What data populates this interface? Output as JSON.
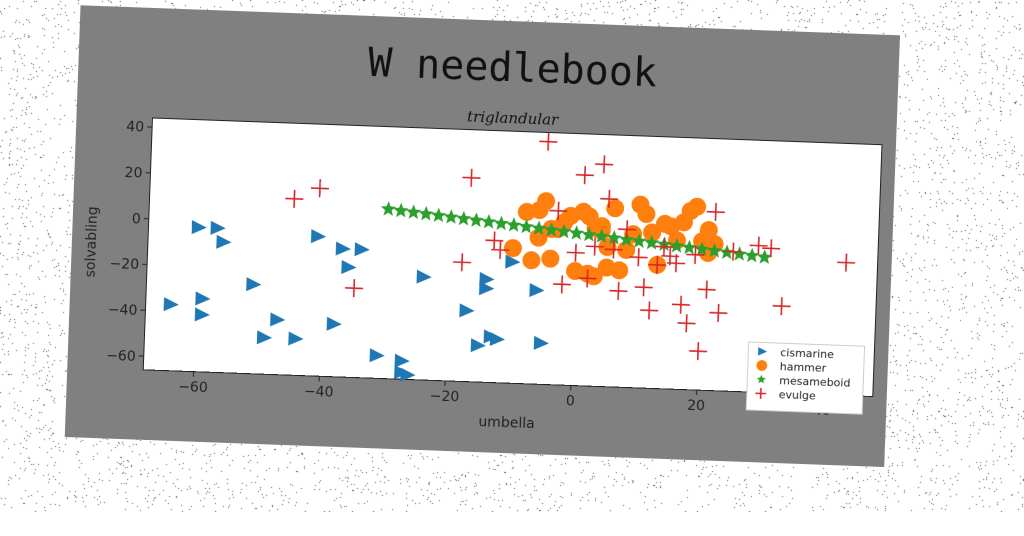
{
  "chart_data": {
    "type": "scatter",
    "title": "W needlebook",
    "subtitle": "triglandular",
    "xlabel": "umbella",
    "ylabel": "solvabling",
    "xlim": [
      -68,
      48
    ],
    "ylim": [
      -66,
      44
    ],
    "xticks": [
      -60,
      -40,
      -20,
      0,
      20,
      40
    ],
    "yticks": [
      -60,
      -40,
      -20,
      0,
      20,
      40
    ],
    "grid": false,
    "legend_position": "lower-right",
    "series": [
      {
        "name": "cismarine",
        "marker": "triangle-right",
        "color": "#1f77b4",
        "x": [
          -60,
          -57,
          -56,
          -64,
          -59,
          -59,
          -51,
          -47,
          -49,
          -44,
          -41,
          -38,
          -37,
          -36,
          -34,
          -31,
          -27,
          -27,
          -26,
          -24,
          -17,
          -15,
          -14,
          -14,
          -13,
          -12,
          -10,
          -6,
          -5
        ],
        "y": [
          -3,
          -3,
          -9,
          -37,
          -34,
          -41,
          -27,
          -42,
          -50,
          -50,
          -5,
          -43,
          -10,
          -18,
          -10,
          -56,
          -58,
          -63,
          -64,
          -21,
          -35,
          -50,
          -21,
          -25,
          -46,
          -47,
          -13,
          -25,
          -48
        ]
      },
      {
        "name": "hammer",
        "marker": "circle",
        "color": "#ff7f0e",
        "x": [
          -10,
          -8,
          -7,
          -6,
          -5,
          -4,
          -3,
          -2,
          -1,
          0,
          1,
          2,
          3,
          4,
          5,
          6,
          7,
          8,
          9,
          10,
          11,
          12,
          13,
          14,
          15,
          16,
          17,
          18,
          19,
          20,
          21,
          22,
          -6,
          -4,
          2,
          3,
          4,
          5,
          12,
          21
        ],
        "y": [
          -7,
          9,
          -12,
          10,
          14,
          -11,
          2,
          5,
          8,
          -16,
          10,
          -17,
          3,
          2,
          -14,
          12,
          -15,
          -6,
          1,
          14,
          10,
          2,
          -12,
          6,
          5,
          -1,
          7,
          12,
          14,
          -1,
          -6,
          -2,
          -2,
          2,
          8,
          -18,
          4,
          -5,
          2,
          4
        ]
      },
      {
        "name": "mesameboid",
        "marker": "star",
        "color": "#2ca02c",
        "x": [
          -30,
          -28,
          -26,
          -24,
          -22,
          -20,
          -18,
          -16,
          -14,
          -12,
          -10,
          -8,
          -6,
          -4,
          -2,
          0,
          2,
          4,
          6,
          8,
          10,
          12,
          14,
          16,
          18,
          20,
          22,
          24,
          26,
          28,
          30
        ],
        "y": [
          8,
          7.5,
          7,
          6.5,
          6,
          5.5,
          5,
          4.5,
          4,
          3.5,
          3,
          2.5,
          2,
          1.5,
          1,
          0.5,
          0,
          -0.5,
          -1,
          -1.5,
          -2,
          -2.5,
          -3,
          -3.5,
          -4,
          -4.5,
          -5,
          -5.5,
          -6,
          -6.5,
          -7
        ]
      },
      {
        "name": "evulge",
        "marker": "plus",
        "color": "#d62728",
        "x": [
          -45,
          -41,
          -35,
          -17,
          -18,
          -13,
          -12,
          -5,
          -3,
          -2,
          0,
          1,
          2,
          3,
          4,
          5,
          6,
          7,
          8,
          10,
          11,
          12,
          13,
          14,
          15,
          16,
          17,
          18,
          19,
          20,
          21,
          22,
          23,
          25,
          29,
          31,
          33,
          43
        ],
        "y": [
          11,
          16,
          -27,
          23,
          -14,
          -4,
          -8,
          40,
          10,
          -22,
          -8,
          26,
          -19,
          -5,
          31,
          16,
          -6,
          -24,
          3,
          -9,
          -22,
          -32,
          -12,
          -4,
          -8,
          -11,
          -29,
          -37,
          -7,
          -49,
          -22,
          12,
          -32,
          -5,
          -2,
          -3,
          -28,
          -8
        ]
      }
    ]
  },
  "colors": {
    "panel": "#808080",
    "plot_background": "#ffffff",
    "legend_background": "#ffffff"
  }
}
